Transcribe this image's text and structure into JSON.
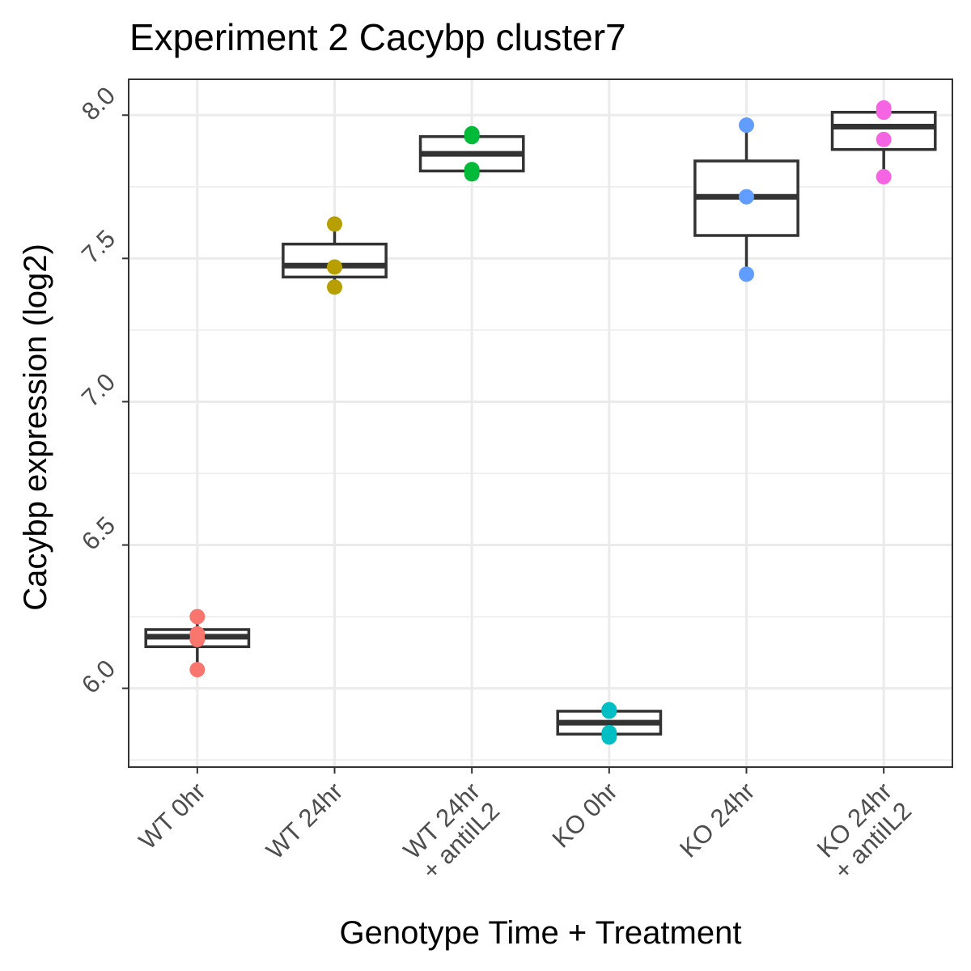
{
  "chart_data": {
    "type": "box",
    "title": "Experiment 2 Cacybp cluster7",
    "xlabel": "Genotype Time + Treatment",
    "ylabel": "Cacybp expression (log2)",
    "ylim": [
      5.725,
      8.125
    ],
    "y_ticks": [
      "6.0",
      "6.5",
      "7.0",
      "7.5",
      "8.0"
    ],
    "grid": true,
    "legend": "none",
    "categories": [
      {
        "label_lines": [
          "WT 0hr"
        ],
        "color": "#F8766D",
        "box": {
          "q1": 6.145,
          "median": 6.18,
          "q3": 6.205,
          "whisker_low": 6.065,
          "whisker_high": 6.25
        },
        "points": [
          6.065,
          6.17,
          6.19,
          6.25
        ]
      },
      {
        "label_lines": [
          "WT 24hr"
        ],
        "color": "#B79F00",
        "box": {
          "q1": 7.435,
          "median": 7.475,
          "q3": 7.55,
          "whisker_low": 7.4,
          "whisker_high": 7.62
        },
        "points": [
          7.4,
          7.47,
          7.62
        ]
      },
      {
        "label_lines": [
          "WT 24hr",
          "+ antiIL2"
        ],
        "color": "#00BA38",
        "box": {
          "q1": 7.805,
          "median": 7.865,
          "q3": 7.925,
          "whisker_low": 7.795,
          "whisker_high": 7.935
        },
        "points": [
          7.795,
          7.81,
          7.925,
          7.935
        ]
      },
      {
        "label_lines": [
          "KO 0hr"
        ],
        "color": "#00BFC4",
        "box": {
          "q1": 5.84,
          "median": 5.88,
          "q3": 5.92,
          "whisker_low": 5.83,
          "whisker_high": 5.925
        },
        "points": [
          5.83,
          5.845,
          5.92,
          5.925
        ]
      },
      {
        "label_lines": [
          "KO 24hr"
        ],
        "color": "#619CFF",
        "box": {
          "q1": 7.58,
          "median": 7.715,
          "q3": 7.84,
          "whisker_low": 7.445,
          "whisker_high": 7.965
        },
        "points": [
          7.445,
          7.715,
          7.965
        ]
      },
      {
        "label_lines": [
          "KO 24hr",
          "+ antiIL2"
        ],
        "color": "#F564E3",
        "box": {
          "q1": 7.88,
          "median": 7.96,
          "q3": 8.01,
          "whisker_low": 7.785,
          "whisker_high": 8.025
        },
        "points": [
          7.785,
          7.915,
          8.01,
          8.025
        ]
      }
    ]
  }
}
